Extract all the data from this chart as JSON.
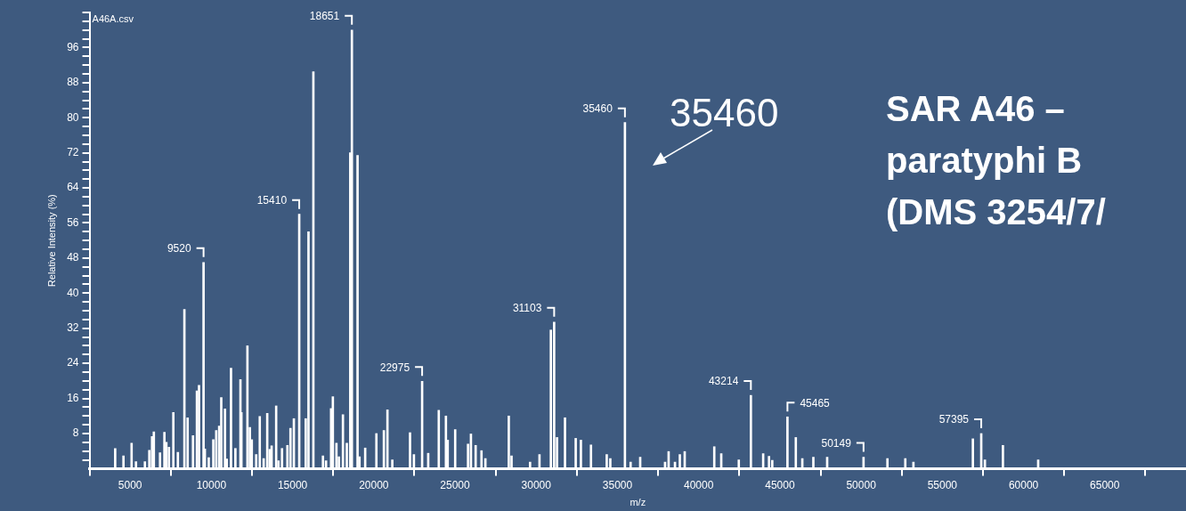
{
  "chart_data": {
    "type": "bar",
    "title": "SAR A46 – paratyphi B (DMS 3254/7/",
    "xlabel": "m/z",
    "ylabel": "Relative Intensity (%)",
    "xlim": [
      2500,
      70000
    ],
    "ylim": [
      0,
      104
    ],
    "xticks": [
      5000,
      10000,
      15000,
      20000,
      25000,
      30000,
      35000,
      40000,
      45000,
      50000,
      55000,
      60000,
      65000
    ],
    "yticks": [
      {
        "value": 2,
        "label": null
      },
      {
        "value": 4,
        "label": null
      },
      {
        "value": 6,
        "label": null
      },
      8,
      {
        "value": 10,
        "label": null
      },
      {
        "value": 12,
        "label": null
      },
      {
        "value": 14,
        "label": null
      },
      16,
      {
        "value": 18,
        "label": null
      },
      {
        "value": 20,
        "label": null
      },
      {
        "value": 22,
        "label": null
      },
      24,
      {
        "value": 26,
        "label": null
      },
      {
        "value": 28,
        "label": null
      },
      {
        "value": 30,
        "label": null
      },
      32,
      {
        "value": 34,
        "label": null
      },
      {
        "value": 36,
        "label": null
      },
      {
        "value": 38,
        "label": null
      },
      40,
      {
        "value": 42,
        "label": null
      },
      {
        "value": 44,
        "label": null
      },
      {
        "value": 46,
        "label": null
      },
      48,
      {
        "value": 50,
        "label": null
      },
      {
        "value": 52,
        "label": null
      },
      {
        "value": 54,
        "label": null
      },
      56,
      {
        "value": 58,
        "label": null
      },
      {
        "value": 60,
        "label": null
      },
      {
        "value": 62,
        "label": null
      },
      64,
      {
        "value": 66,
        "label": null
      },
      {
        "value": 68,
        "label": null
      },
      {
        "value": 70,
        "label": null
      },
      72,
      {
        "value": 74,
        "label": null
      },
      {
        "value": 76,
        "label": null
      },
      {
        "value": 78,
        "label": null
      },
      80,
      {
        "value": 82,
        "label": null
      },
      {
        "value": 84,
        "label": null
      },
      {
        "value": 86,
        "label": null
      },
      88,
      {
        "value": 90,
        "label": null
      },
      {
        "value": 92,
        "label": null
      },
      {
        "value": 94,
        "label": null
      },
      96,
      {
        "value": 98,
        "label": null
      },
      {
        "value": 100,
        "label": null
      },
      {
        "value": 102,
        "label": null
      },
      {
        "value": 104,
        "label": null
      }
    ],
    "series": [
      {
        "color": "#ffffff",
        "x": [
          4080,
          4590,
          5090,
          5360,
          5910,
          6180,
          6350,
          6460,
          6840,
          7110,
          7230,
          7390,
          7660,
          7940,
          8340,
          8540,
          8870,
          9110,
          9240,
          9520,
          9600,
          9840,
          10120,
          10300,
          10480,
          10610,
          10840,
          10950,
          11210,
          11480,
          11790,
          11850,
          12220,
          12370,
          12490,
          12760,
          12980,
          13220,
          13440,
          13590,
          13710,
          13990,
          14130,
          14350,
          14680,
          14870,
          15080,
          15410,
          15810,
          15890,
          15980,
          16280,
          16870,
          17060,
          17370,
          17480,
          17700,
          17850,
          18100,
          18340,
          18490,
          18550,
          18651,
          19000,
          19120,
          19470,
          20160,
          20620,
          20840,
          21140,
          22230,
          22470,
          22975,
          23350,
          24000,
          24440,
          24550,
          25010,
          25800,
          25980,
          26270,
          26630,
          26870,
          28310,
          28480,
          29620,
          30200,
          30900,
          31103,
          31280,
          31770,
          32430,
          32750,
          33370,
          34340,
          34560,
          35460,
          35810,
          36400,
          37930,
          38150,
          38540,
          38840,
          39140,
          40960,
          41390,
          42470,
          43214,
          43970,
          44330,
          44530,
          45465,
          45980,
          46380,
          47060,
          47910,
          50149,
          51620,
          52720,
          53220,
          56880,
          57395,
          57620,
          58730,
          60900
        ],
        "values": [
          4.6,
          2.9,
          5.8,
          1.6,
          1.6,
          4.2,
          7.3,
          8.4,
          3.6,
          8.3,
          6,
          4.9,
          12.8,
          3.7,
          36.3,
          11.6,
          7.5,
          17.7,
          19,
          47,
          4.5,
          2.5,
          6.6,
          8.7,
          9.7,
          16.2,
          13.6,
          2.2,
          22.9,
          4.6,
          20.3,
          12.8,
          28,
          9.4,
          6.6,
          3.2,
          11.9,
          2.3,
          12.6,
          4.4,
          5.2,
          14.3,
          1.8,
          4.6,
          5.3,
          9.2,
          11.4,
          58,
          11.4,
          null,
          54,
          90.5,
          2.9,
          1.8,
          13.7,
          16.4,
          5.8,
          2.7,
          12.3,
          5.8,
          null,
          72,
          100,
          71.4,
          2.7,
          4.7,
          8,
          8.7,
          13.4,
          2,
          8.2,
          3.2,
          19.9,
          3.5,
          13.3,
          12,
          6.5,
          8.9,
          5.6,
          7.9,
          5.3,
          4.1,
          2.3,
          12,
          2.9,
          1.5,
          3.2,
          31.6,
          33.4,
          7.1,
          11.6,
          6.9,
          6.5,
          5.4,
          3.2,
          2.3,
          78.9,
          1.5,
          2.6,
          1.5,
          3.9,
          1.5,
          3.2,
          3.9,
          5,
          3.4,
          2,
          16.7,
          3.4,
          2.8,
          1.9,
          11.8,
          7.1,
          2.3,
          2.6,
          2.6,
          2.6,
          2.3,
          2.3,
          1.5,
          6.8,
          8,
          2,
          5.3,
          2
        ]
      }
    ],
    "annotations": [
      "A46A.csv",
      "35460",
      {
        "text": "9520",
        "x": 9520,
        "y": 47
      },
      {
        "text": "15410",
        "x": 15410,
        "y": 58
      },
      {
        "text": "18651",
        "x": 18651,
        "y": 100
      },
      {
        "text": "22975",
        "x": 22975,
        "y": 19.9
      },
      {
        "text": "31103",
        "x": 31103,
        "y": 33.4
      },
      {
        "text": "35460",
        "x": 35460,
        "y": 78.9
      },
      {
        "text": "43214",
        "x": 43214,
        "y": 16.7
      },
      {
        "text": "45465",
        "x": 45465,
        "y": 11.8
      },
      {
        "text": "50149",
        "x": 50149,
        "y": 2.6
      },
      {
        "text": "57395",
        "x": 57395,
        "y": 8
      }
    ]
  }
}
